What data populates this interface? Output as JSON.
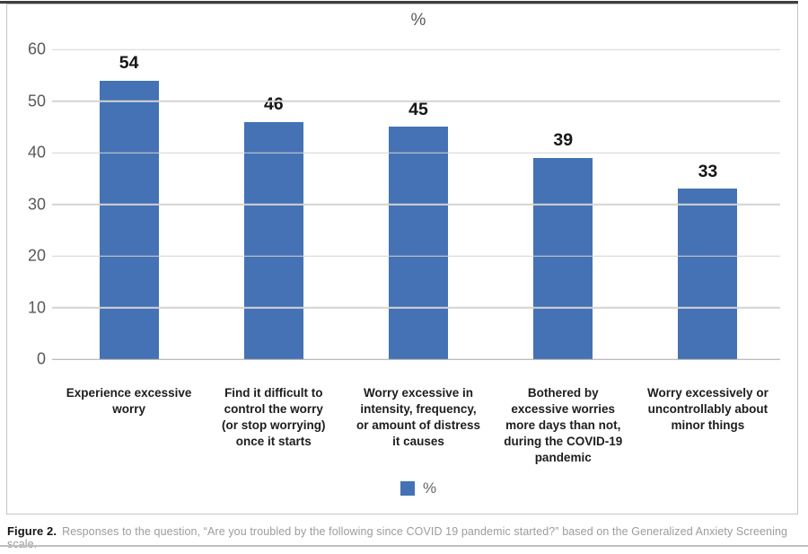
{
  "page": {
    "caption_label": "Figure 2.",
    "caption_text": "Responses to the question, “Are you troubled by the following since COVID 19 pandemic started?” based on the Generalized Anxiety Screening scale."
  },
  "chart_data": {
    "type": "bar",
    "title": "%",
    "categories": [
      "Experience excessive\nworry",
      "Find it difficult to\ncontrol the worry\n(or stop worrying)\nonce it starts",
      "Worry excessive in\nintensity, frequency,\nor amount of distress\nit causes",
      "Bothered by\nexcessive worries\nmore days than not,\nduring the COVID-19\npandemic",
      "Worry excessively or\nuncontrollably about\nminor things"
    ],
    "values": [
      54,
      46,
      45,
      39,
      33
    ],
    "bar_color": "#4472b4",
    "xlabel": "",
    "ylabel": "",
    "ylim": [
      0,
      60
    ],
    "yticks": [
      0,
      10,
      20,
      30,
      40,
      50,
      60
    ],
    "grid": true,
    "gridline_color": "#d3d3d3",
    "axis_label_color": "#595959",
    "legend_position": "bottom",
    "legend": [
      {
        "label": "%",
        "color": "#4472b4"
      }
    ]
  }
}
